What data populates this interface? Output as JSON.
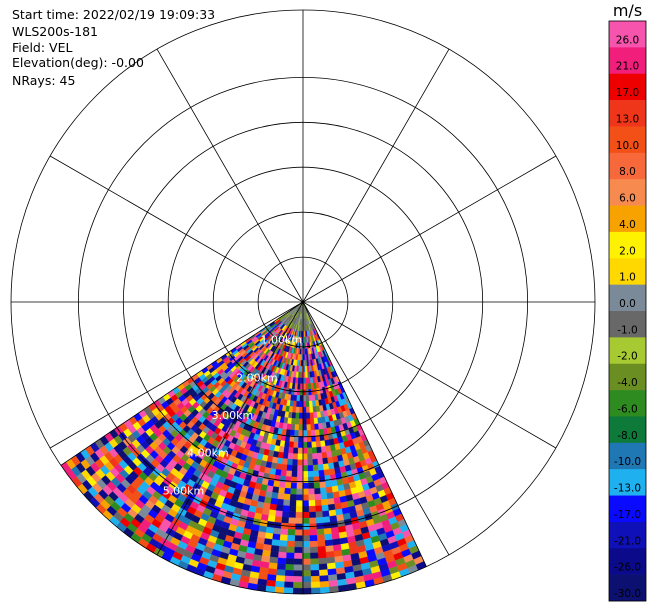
{
  "info": {
    "start_time": "Start time: 2022/02/19 19:09:33",
    "instrument": "WLS200s-181",
    "field": "Field: VEL",
    "elevation": "Elevation(deg): -0.00",
    "nrays": "NRays: 45"
  },
  "chart_data": {
    "type": "heatmap",
    "projection": "polar-ppi",
    "field": "VEL",
    "units": "m/s",
    "azimuth_start_deg": 155,
    "azimuth_end_deg": 236,
    "nrays": 45,
    "max_range_km": 6.5,
    "range_rings_km": [
      1,
      2,
      3,
      4,
      5
    ],
    "ring_labels": [
      "1.00km",
      "2.00km",
      "3.00km",
      "4.00km",
      "5.00km"
    ],
    "grid_circles_km": [
      1,
      2,
      3,
      4,
      5,
      6.5
    ],
    "grid_spokes_deg": [
      0,
      30,
      60,
      90,
      120,
      150,
      180,
      210,
      240,
      270,
      300,
      330
    ],
    "colorbar": {
      "unit_label": "m/s",
      "tick_labels": [
        "26.0",
        "21.0",
        "17.0",
        "13.0",
        "10.0",
        "8.0",
        "6.0",
        "4.0",
        "2.0",
        "1.0",
        "0.0",
        "-1.0",
        "-2.0",
        "-4.0",
        "-6.0",
        "-8.0",
        "-10.0",
        "-13.0",
        "-17.0",
        "-21.0",
        "-26.0",
        "-30.0"
      ],
      "bins": [
        {
          "min": 26,
          "max": 30,
          "color": "#f754ad"
        },
        {
          "min": 21,
          "max": 26,
          "color": "#f11e7c"
        },
        {
          "min": 17,
          "max": 21,
          "color": "#ee0000"
        },
        {
          "min": 13,
          "max": 17,
          "color": "#f0361a"
        },
        {
          "min": 10,
          "max": 13,
          "color": "#f25017"
        },
        {
          "min": 8,
          "max": 10,
          "color": "#f7683a"
        },
        {
          "min": 6,
          "max": 8,
          "color": "#f78a4f"
        },
        {
          "min": 4,
          "max": 6,
          "color": "#f8a200"
        },
        {
          "min": 2,
          "max": 4,
          "color": "#fff200"
        },
        {
          "min": 1,
          "max": 2,
          "color": "#ffd800"
        },
        {
          "min": 0,
          "max": 1,
          "color": "#7a8a99"
        },
        {
          "min": -1,
          "max": 0,
          "color": "#686868"
        },
        {
          "min": -2,
          "max": -1,
          "color": "#a7c931"
        },
        {
          "min": -4,
          "max": -2,
          "color": "#6b8e23"
        },
        {
          "min": -6,
          "max": -4,
          "color": "#2e8b1f"
        },
        {
          "min": -8,
          "max": -6,
          "color": "#0d7a3a"
        },
        {
          "min": -10,
          "max": -8,
          "color": "#1f77b4"
        },
        {
          "min": -13,
          "max": -10,
          "color": "#1fb0ef"
        },
        {
          "min": -17,
          "max": -13,
          "color": "#0a0aff"
        },
        {
          "min": -21,
          "max": -17,
          "color": "#1010b8"
        },
        {
          "min": -26,
          "max": -21,
          "color": "#0a0a8a"
        },
        {
          "min": -30,
          "max": -26,
          "color": "#0c1070"
        }
      ]
    },
    "velocity_value_mix": [
      -30,
      -27,
      -23,
      -19,
      -19,
      -15,
      -15,
      28,
      28,
      23,
      23,
      15,
      11,
      11,
      9,
      7,
      3,
      5,
      -3,
      -5,
      -9,
      -11,
      -12,
      0.5,
      -0.5,
      1.5,
      19
    ]
  }
}
